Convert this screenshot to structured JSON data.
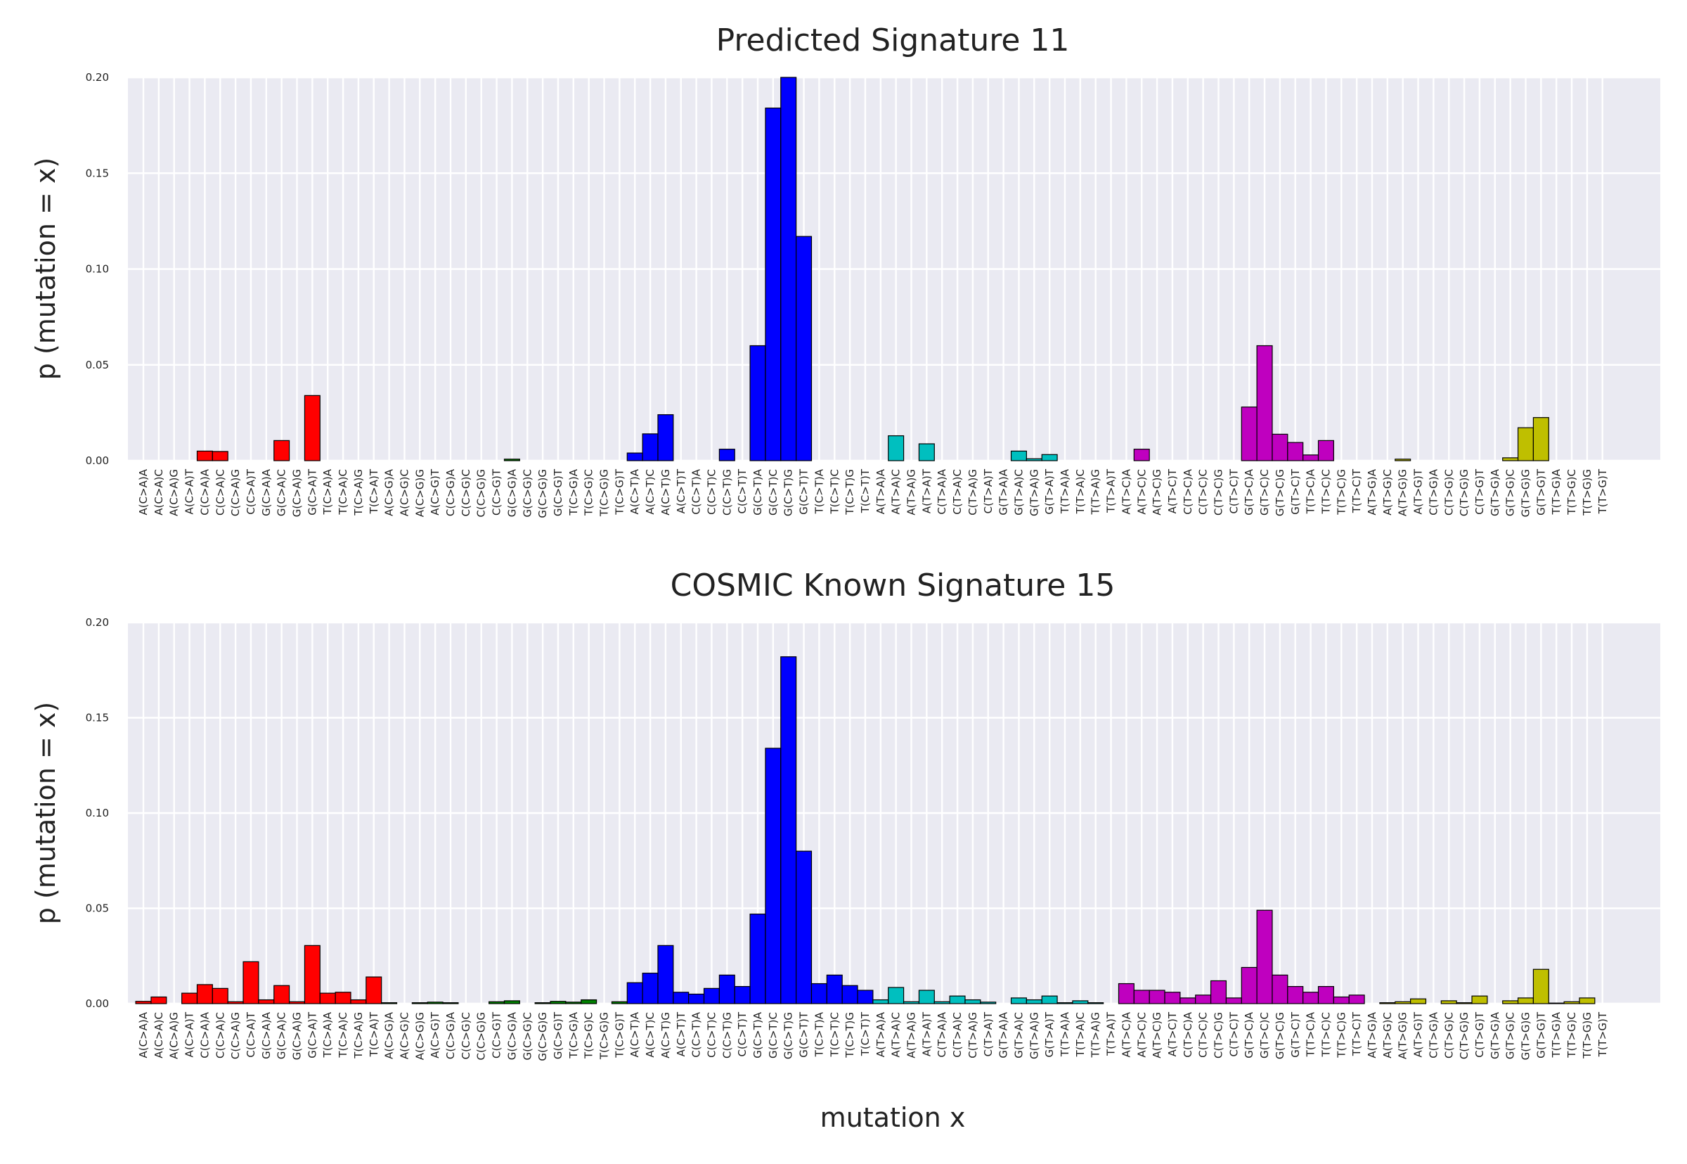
{
  "figure": {
    "xlabel": "mutation x"
  },
  "chart_data": [
    {
      "type": "bar",
      "title": "Predicted Signature 11",
      "ylabel": "p (mutation = x)",
      "xlabel": "",
      "ylim": [
        0,
        0.2
      ],
      "yticks": [
        "0.00",
        "0.05",
        "0.10",
        "0.15",
        "0.20"
      ],
      "grid": true,
      "categories": [
        "A(C>A)A",
        "A(C>A)C",
        "A(C>A)G",
        "A(C>A)T",
        "C(C>A)A",
        "C(C>A)C",
        "C(C>A)G",
        "C(C>A)T",
        "G(C>A)A",
        "G(C>A)C",
        "G(C>A)G",
        "G(C>A)T",
        "T(C>A)A",
        "T(C>A)C",
        "T(C>A)G",
        "T(C>A)T",
        "A(C>G)A",
        "A(C>G)C",
        "A(C>G)G",
        "A(C>G)T",
        "C(C>G)A",
        "C(C>G)C",
        "C(C>G)G",
        "C(C>G)T",
        "G(C>G)A",
        "G(C>G)C",
        "G(C>G)G",
        "G(C>G)T",
        "T(C>G)A",
        "T(C>G)C",
        "T(C>G)G",
        "T(C>G)T",
        "A(C>T)A",
        "A(C>T)C",
        "A(C>T)G",
        "A(C>T)T",
        "C(C>T)A",
        "C(C>T)C",
        "C(C>T)G",
        "C(C>T)T",
        "G(C>T)A",
        "G(C>T)C",
        "G(C>T)G",
        "G(C>T)T",
        "T(C>T)A",
        "T(C>T)C",
        "T(C>T)G",
        "T(C>T)T",
        "A(T>A)A",
        "A(T>A)C",
        "A(T>A)G",
        "A(T>A)T",
        "C(T>A)A",
        "C(T>A)C",
        "C(T>A)G",
        "C(T>A)T",
        "G(T>A)A",
        "G(T>A)C",
        "G(T>A)G",
        "G(T>A)T",
        "T(T>A)A",
        "T(T>A)C",
        "T(T>A)G",
        "T(T>A)T",
        "A(T>C)A",
        "A(T>C)C",
        "A(T>C)G",
        "A(T>C)T",
        "C(T>C)A",
        "C(T>C)C",
        "C(T>C)G",
        "C(T>C)T",
        "G(T>C)A",
        "G(T>C)C",
        "G(T>C)G",
        "G(T>C)T",
        "T(T>C)A",
        "T(T>C)C",
        "T(T>C)G",
        "T(T>C)T",
        "A(T>G)A",
        "A(T>G)C",
        "A(T>G)G",
        "A(T>G)T",
        "C(T>G)A",
        "C(T>G)C",
        "C(T>G)G",
        "C(T>G)T",
        "G(T>G)A",
        "G(T>G)C",
        "G(T>G)G",
        "G(T>G)T",
        "T(T>G)A",
        "T(T>G)C",
        "T(T>G)G",
        "T(T>G)T"
      ],
      "group_colors": [
        "#ff0000",
        "#008000",
        "#0000ff",
        "#00bfbf",
        "#bf00bf",
        "#bfbf00"
      ],
      "values": [
        0,
        0,
        0,
        0,
        0.005,
        0.0048,
        0,
        0,
        0,
        0.0105,
        0,
        0.034,
        0,
        0,
        0,
        0,
        0,
        0,
        0,
        0,
        0,
        0,
        0,
        0,
        0.0008,
        0,
        0,
        0,
        0,
        0,
        0,
        0,
        0.004,
        0.014,
        0.024,
        0,
        0,
        0,
        0.006,
        0,
        0.06,
        0.184,
        0.2,
        0.117,
        0,
        0,
        0,
        0,
        0,
        0.013,
        0,
        0.0088,
        0,
        0,
        0,
        0,
        0,
        0.005,
        0.001,
        0.0032,
        0,
        0,
        0,
        0,
        0,
        0.006,
        0,
        0,
        0,
        0,
        0,
        0,
        0.028,
        0.06,
        0.0138,
        0.0095,
        0.003,
        0.0105,
        0,
        0,
        0,
        0,
        0.0008,
        0,
        0,
        0,
        0,
        0,
        0,
        0.0015,
        0.0172,
        0.0225,
        0,
        0,
        0,
        0
      ]
    },
    {
      "type": "bar",
      "title": "COSMIC Known Signature 15",
      "ylabel": "p (mutation = x)",
      "xlabel": "mutation x",
      "ylim": [
        0,
        0.2
      ],
      "yticks": [
        "0.00",
        "0.05",
        "0.10",
        "0.15",
        "0.20"
      ],
      "grid": true,
      "categories": [
        "A(C>A)A",
        "A(C>A)C",
        "A(C>A)G",
        "A(C>A)T",
        "C(C>A)A",
        "C(C>A)C",
        "C(C>A)G",
        "C(C>A)T",
        "G(C>A)A",
        "G(C>A)C",
        "G(C>A)G",
        "G(C>A)T",
        "T(C>A)A",
        "T(C>A)C",
        "T(C>A)G",
        "T(C>A)T",
        "A(C>G)A",
        "A(C>G)C",
        "A(C>G)G",
        "A(C>G)T",
        "C(C>G)A",
        "C(C>G)C",
        "C(C>G)G",
        "C(C>G)T",
        "G(C>G)A",
        "G(C>G)C",
        "G(C>G)G",
        "G(C>G)T",
        "T(C>G)A",
        "T(C>G)C",
        "T(C>G)G",
        "T(C>G)T",
        "A(C>T)A",
        "A(C>T)C",
        "A(C>T)G",
        "A(C>T)T",
        "C(C>T)A",
        "C(C>T)C",
        "C(C>T)G",
        "C(C>T)T",
        "G(C>T)A",
        "G(C>T)C",
        "G(C>T)G",
        "G(C>T)T",
        "T(C>T)A",
        "T(C>T)C",
        "T(C>T)G",
        "T(C>T)T",
        "A(T>A)A",
        "A(T>A)C",
        "A(T>A)G",
        "A(T>A)T",
        "C(T>A)A",
        "C(T>A)C",
        "C(T>A)G",
        "C(T>A)T",
        "G(T>A)A",
        "G(T>A)C",
        "G(T>A)G",
        "G(T>A)T",
        "T(T>A)A",
        "T(T>A)C",
        "T(T>A)G",
        "T(T>A)T",
        "A(T>C)A",
        "A(T>C)C",
        "A(T>C)G",
        "A(T>C)T",
        "C(T>C)A",
        "C(T>C)C",
        "C(T>C)G",
        "C(T>C)T",
        "G(T>C)A",
        "G(T>C)C",
        "G(T>C)G",
        "G(T>C)T",
        "T(T>C)A",
        "T(T>C)C",
        "T(T>C)G",
        "T(T>C)T",
        "A(T>G)A",
        "A(T>G)C",
        "A(T>G)G",
        "A(T>G)T",
        "C(T>G)A",
        "C(T>G)C",
        "C(T>G)G",
        "C(T>G)T",
        "G(T>G)A",
        "G(T>G)C",
        "G(T>G)G",
        "G(T>G)T",
        "T(T>G)A",
        "T(T>G)C",
        "T(T>G)G",
        "T(T>G)T"
      ],
      "group_colors": [
        "#ff0000",
        "#008000",
        "#0000ff",
        "#00bfbf",
        "#bf00bf",
        "#bfbf00"
      ],
      "values": [
        0.0012,
        0.0035,
        0,
        0.0055,
        0.01,
        0.008,
        0.001,
        0.022,
        0.002,
        0.0095,
        0.001,
        0.0305,
        0.0055,
        0.006,
        0.002,
        0.014,
        0.0005,
        0,
        0.0005,
        0.0008,
        0.0005,
        0,
        0,
        0.001,
        0.0015,
        0,
        0.0005,
        0.0012,
        0.0008,
        0.002,
        0,
        0.001,
        0.011,
        0.016,
        0.0305,
        0.006,
        0.005,
        0.008,
        0.015,
        0.009,
        0.047,
        0.134,
        0.182,
        0.08,
        0.0105,
        0.015,
        0.0095,
        0.007,
        0.002,
        0.0085,
        0.001,
        0.007,
        0.001,
        0.004,
        0.002,
        0.0008,
        0,
        0.003,
        0.002,
        0.004,
        0.0005,
        0.0015,
        0.0005,
        0,
        0.0105,
        0.007,
        0.007,
        0.006,
        0.003,
        0.0045,
        0.012,
        0.003,
        0.019,
        0.049,
        0.015,
        0.009,
        0.006,
        0.009,
        0.0035,
        0.0045,
        0,
        0.0005,
        0.001,
        0.0025,
        0,
        0.0015,
        0.0005,
        0.004,
        0,
        0.0015,
        0.003,
        0.018,
        0.0003,
        0.001,
        0.003,
        0
      ]
    }
  ]
}
